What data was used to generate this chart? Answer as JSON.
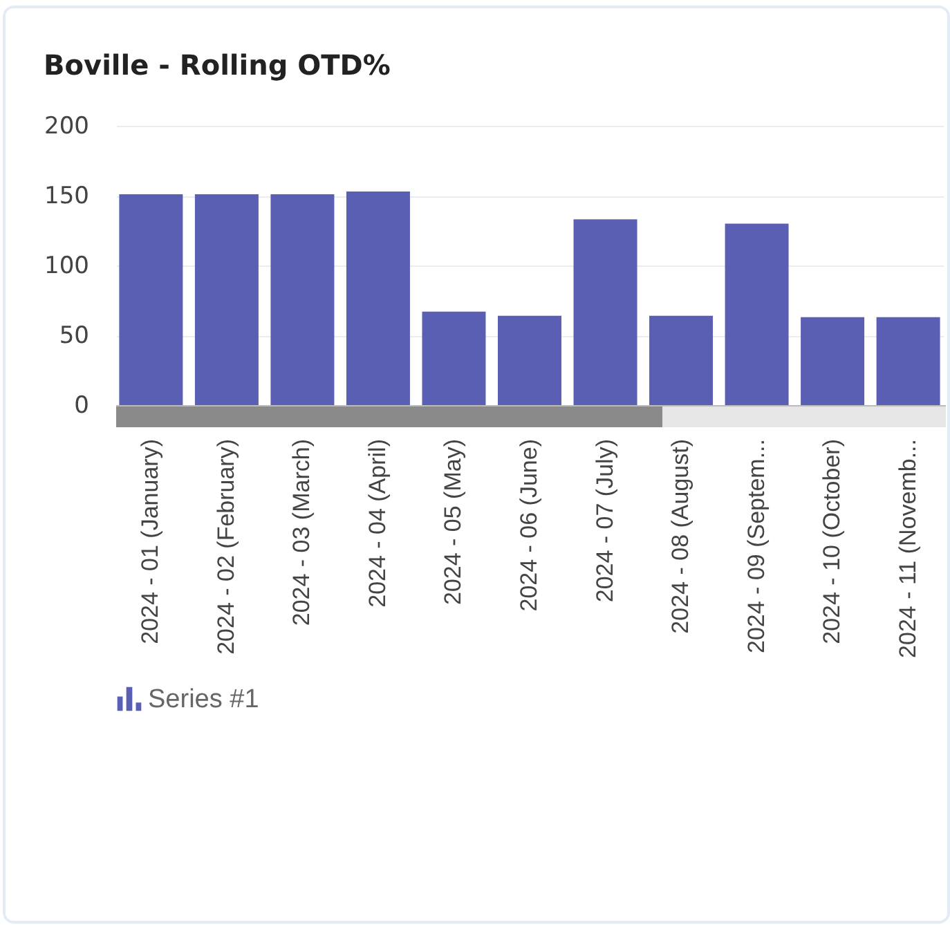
{
  "chart_data": {
    "type": "bar",
    "title": "Boville - Rolling OTD%",
    "categories": [
      "2024 - 01 (January)",
      "2024 - 02 (February)",
      "2024 - 03 (March)",
      "2024 - 04 (April)",
      "2024 - 05 (May)",
      "2024 - 06 (June)",
      "2024 - 07 (July)",
      "2024 - 08 (August)",
      "2024 - 09 (Septem...",
      "2024 - 10 (October)",
      "2024 - 11 (Novemb..."
    ],
    "series": [
      {
        "name": "Series #1",
        "color": "#5b5fb3",
        "values": [
          151,
          151,
          151,
          153,
          67,
          64,
          133,
          64,
          130,
          63,
          63
        ]
      }
    ],
    "ylim": [
      0,
      200
    ],
    "yticks": [
      0,
      50,
      100,
      150,
      200
    ],
    "grid": "y",
    "legend": "bottom"
  }
}
